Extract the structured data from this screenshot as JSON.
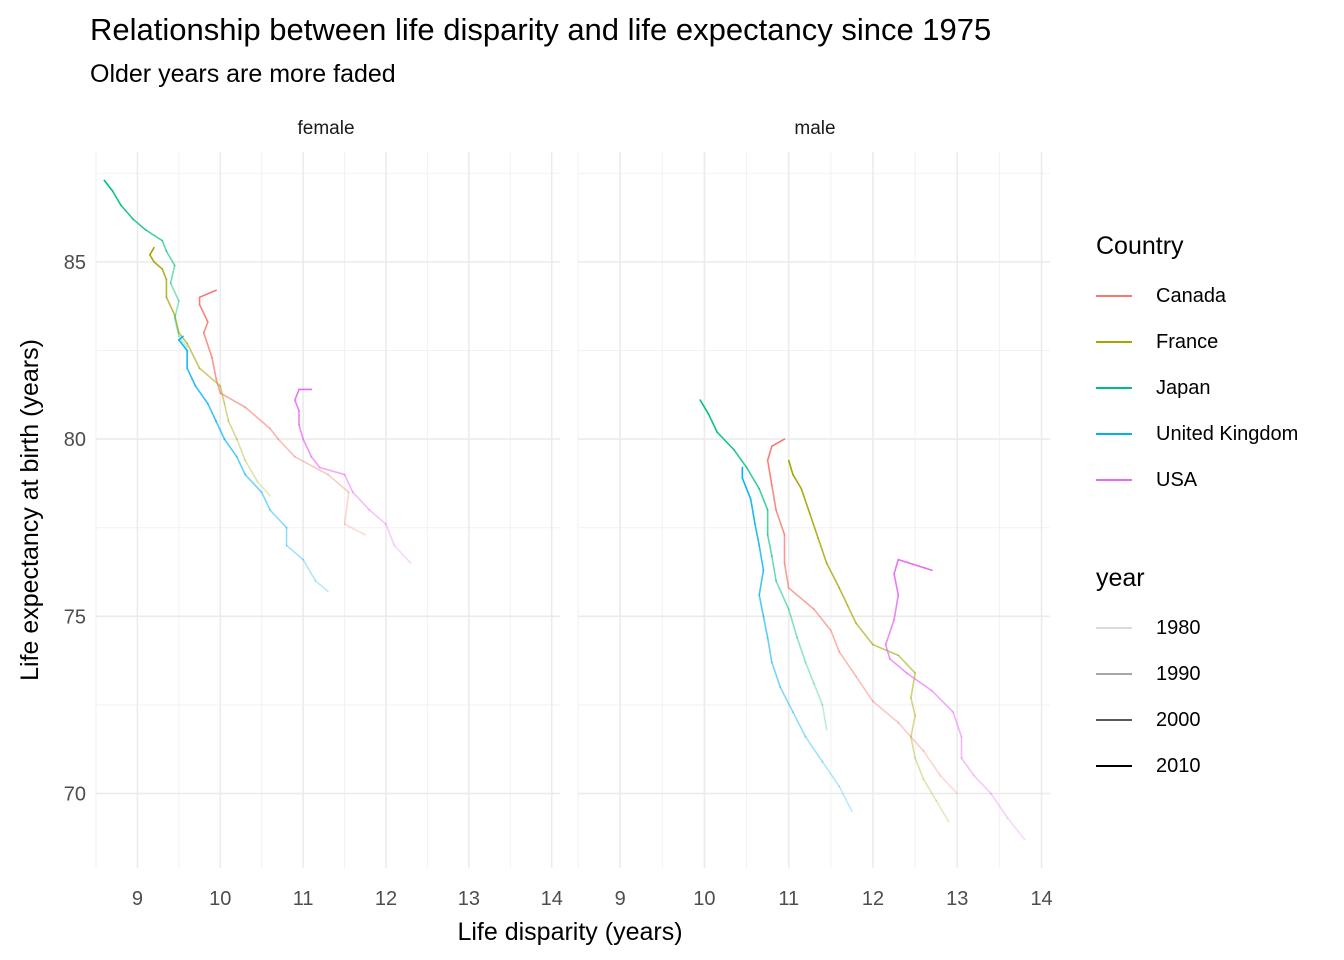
{
  "chart_data": {
    "type": "line",
    "title": "Relationship between life disparity and life expectancy since 1975",
    "subtitle": "Older years are more faded",
    "xlabel": "Life disparity (years)",
    "ylabel": "Life expectancy at birth (years)",
    "xlim": [
      8.5,
      14.1
    ],
    "ylim": [
      67.9,
      88.1
    ],
    "x_ticks": [
      9,
      10,
      11,
      12,
      13,
      14
    ],
    "y_ticks": [
      70,
      75,
      80,
      85
    ],
    "grid": true,
    "legend_position": "right",
    "legend": {
      "country_title": "Country",
      "year_title": "year",
      "year_entries": [
        "1980",
        "1990",
        "2000",
        "2010"
      ]
    },
    "facets": [
      {
        "name": "female",
        "series": [
          {
            "name": "Canada",
            "color": "#F8766D",
            "points": [
              [
                11.75,
                77.3
              ],
              [
                11.5,
                77.6
              ],
              [
                11.55,
                78.5
              ],
              [
                11.3,
                79.0
              ],
              [
                10.9,
                79.5
              ],
              [
                10.7,
                80.0
              ],
              [
                10.6,
                80.3
              ],
              [
                10.3,
                80.9
              ],
              [
                10.0,
                81.3
              ],
              [
                9.95,
                81.7
              ],
              [
                9.9,
                82.3
              ],
              [
                9.8,
                83.0
              ],
              [
                9.85,
                83.3
              ],
              [
                9.75,
                83.8
              ],
              [
                9.75,
                84.0
              ],
              [
                9.95,
                84.2
              ]
            ]
          },
          {
            "name": "France",
            "color": "#A3A500",
            "points": [
              [
                10.6,
                78.4
              ],
              [
                10.45,
                78.8
              ],
              [
                10.3,
                79.4
              ],
              [
                10.2,
                80.0
              ],
              [
                10.1,
                80.5
              ],
              [
                10.05,
                81.0
              ],
              [
                10.0,
                81.5
              ],
              [
                9.75,
                82.0
              ],
              [
                9.6,
                82.7
              ],
              [
                9.5,
                83.0
              ],
              [
                9.45,
                83.5
              ],
              [
                9.35,
                84.0
              ],
              [
                9.35,
                84.5
              ],
              [
                9.3,
                84.8
              ],
              [
                9.2,
                85.0
              ],
              [
                9.15,
                85.2
              ],
              [
                9.2,
                85.4
              ]
            ]
          },
          {
            "name": "Japan",
            "color": "#00BF7D",
            "points": [
              [
                9.6,
                82.6
              ],
              [
                9.5,
                82.9
              ],
              [
                9.45,
                83.4
              ],
              [
                9.5,
                83.9
              ],
              [
                9.4,
                84.4
              ],
              [
                9.45,
                84.9
              ],
              [
                9.35,
                85.3
              ],
              [
                9.3,
                85.6
              ],
              [
                9.1,
                85.9
              ],
              [
                8.95,
                86.2
              ],
              [
                8.8,
                86.6
              ],
              [
                8.7,
                87.0
              ],
              [
                8.6,
                87.3
              ]
            ]
          },
          {
            "name": "United Kingdom",
            "color": "#00B0F6",
            "points": [
              [
                11.3,
                75.7
              ],
              [
                11.15,
                76.0
              ],
              [
                11.0,
                76.6
              ],
              [
                10.8,
                77.0
              ],
              [
                10.8,
                77.5
              ],
              [
                10.6,
                78.0
              ],
              [
                10.5,
                78.5
              ],
              [
                10.3,
                79.0
              ],
              [
                10.2,
                79.5
              ],
              [
                10.05,
                80.0
              ],
              [
                9.95,
                80.5
              ],
              [
                9.85,
                81.0
              ],
              [
                9.7,
                81.5
              ],
              [
                9.6,
                82.0
              ],
              [
                9.6,
                82.5
              ],
              [
                9.5,
                82.8
              ],
              [
                9.55,
                82.9
              ]
            ]
          },
          {
            "name": "USA",
            "color": "#E76BF3",
            "points": [
              [
                12.3,
                76.5
              ],
              [
                12.1,
                77.0
              ],
              [
                12.0,
                77.6
              ],
              [
                11.8,
                78.0
              ],
              [
                11.6,
                78.5
              ],
              [
                11.5,
                79.0
              ],
              [
                11.2,
                79.2
              ],
              [
                11.1,
                79.5
              ],
              [
                11.0,
                80.0
              ],
              [
                10.95,
                80.4
              ],
              [
                10.95,
                80.8
              ],
              [
                10.9,
                81.1
              ],
              [
                10.95,
                81.4
              ],
              [
                11.1,
                81.4
              ]
            ]
          }
        ]
      },
      {
        "name": "male",
        "series": [
          {
            "name": "Canada",
            "color": "#F8766D",
            "points": [
              [
                13.0,
                70.0
              ],
              [
                12.8,
                70.5
              ],
              [
                12.6,
                71.2
              ],
              [
                12.3,
                72.0
              ],
              [
                12.0,
                72.6
              ],
              [
                11.8,
                73.3
              ],
              [
                11.6,
                74.0
              ],
              [
                11.5,
                74.6
              ],
              [
                11.3,
                75.2
              ],
              [
                11.0,
                75.8
              ],
              [
                10.95,
                76.5
              ],
              [
                10.95,
                77.3
              ],
              [
                10.85,
                78.0
              ],
              [
                10.8,
                78.7
              ],
              [
                10.75,
                79.4
              ],
              [
                10.8,
                79.8
              ],
              [
                10.95,
                80.0
              ]
            ]
          },
          {
            "name": "France",
            "color": "#A3A500",
            "points": [
              [
                12.9,
                69.2
              ],
              [
                12.75,
                69.8
              ],
              [
                12.6,
                70.4
              ],
              [
                12.5,
                71.0
              ],
              [
                12.45,
                71.6
              ],
              [
                12.5,
                72.2
              ],
              [
                12.45,
                72.7
              ],
              [
                12.5,
                73.4
              ],
              [
                12.3,
                73.9
              ],
              [
                12.0,
                74.2
              ],
              [
                11.8,
                74.8
              ],
              [
                11.7,
                75.3
              ],
              [
                11.6,
                75.8
              ],
              [
                11.45,
                76.5
              ],
              [
                11.35,
                77.2
              ],
              [
                11.25,
                77.9
              ],
              [
                11.15,
                78.6
              ],
              [
                11.05,
                79.0
              ],
              [
                11.0,
                79.4
              ]
            ]
          },
          {
            "name": "Japan",
            "color": "#00BF7D",
            "points": [
              [
                11.45,
                71.8
              ],
              [
                11.4,
                72.5
              ],
              [
                11.3,
                73.1
              ],
              [
                11.2,
                73.7
              ],
              [
                11.1,
                74.4
              ],
              [
                11.0,
                75.2
              ],
              [
                10.85,
                76.0
              ],
              [
                10.8,
                76.7
              ],
              [
                10.75,
                77.3
              ],
              [
                10.75,
                78.0
              ],
              [
                10.65,
                78.6
              ],
              [
                10.5,
                79.2
              ],
              [
                10.35,
                79.7
              ],
              [
                10.15,
                80.2
              ],
              [
                10.05,
                80.7
              ],
              [
                9.95,
                81.1
              ]
            ]
          },
          {
            "name": "United Kingdom",
            "color": "#00B0F6",
            "points": [
              [
                11.75,
                69.5
              ],
              [
                11.6,
                70.2
              ],
              [
                11.4,
                70.9
              ],
              [
                11.2,
                71.6
              ],
              [
                11.05,
                72.3
              ],
              [
                10.9,
                73.0
              ],
              [
                10.8,
                73.7
              ],
              [
                10.75,
                74.4
              ],
              [
                10.7,
                75.0
              ],
              [
                10.65,
                75.6
              ],
              [
                10.7,
                76.3
              ],
              [
                10.65,
                77.0
              ],
              [
                10.6,
                77.6
              ],
              [
                10.55,
                78.3
              ],
              [
                10.45,
                78.9
              ],
              [
                10.45,
                79.2
              ]
            ]
          },
          {
            "name": "USA",
            "color": "#E76BF3",
            "points": [
              [
                13.8,
                68.7
              ],
              [
                13.6,
                69.3
              ],
              [
                13.4,
                70.0
              ],
              [
                13.2,
                70.5
              ],
              [
                13.05,
                71.0
              ],
              [
                13.05,
                71.6
              ],
              [
                12.95,
                72.3
              ],
              [
                12.7,
                72.9
              ],
              [
                12.4,
                73.4
              ],
              [
                12.2,
                73.8
              ],
              [
                12.15,
                74.2
              ],
              [
                12.25,
                74.9
              ],
              [
                12.3,
                75.6
              ],
              [
                12.25,
                76.2
              ],
              [
                12.3,
                76.6
              ],
              [
                12.7,
                76.3
              ]
            ]
          }
        ]
      }
    ]
  }
}
